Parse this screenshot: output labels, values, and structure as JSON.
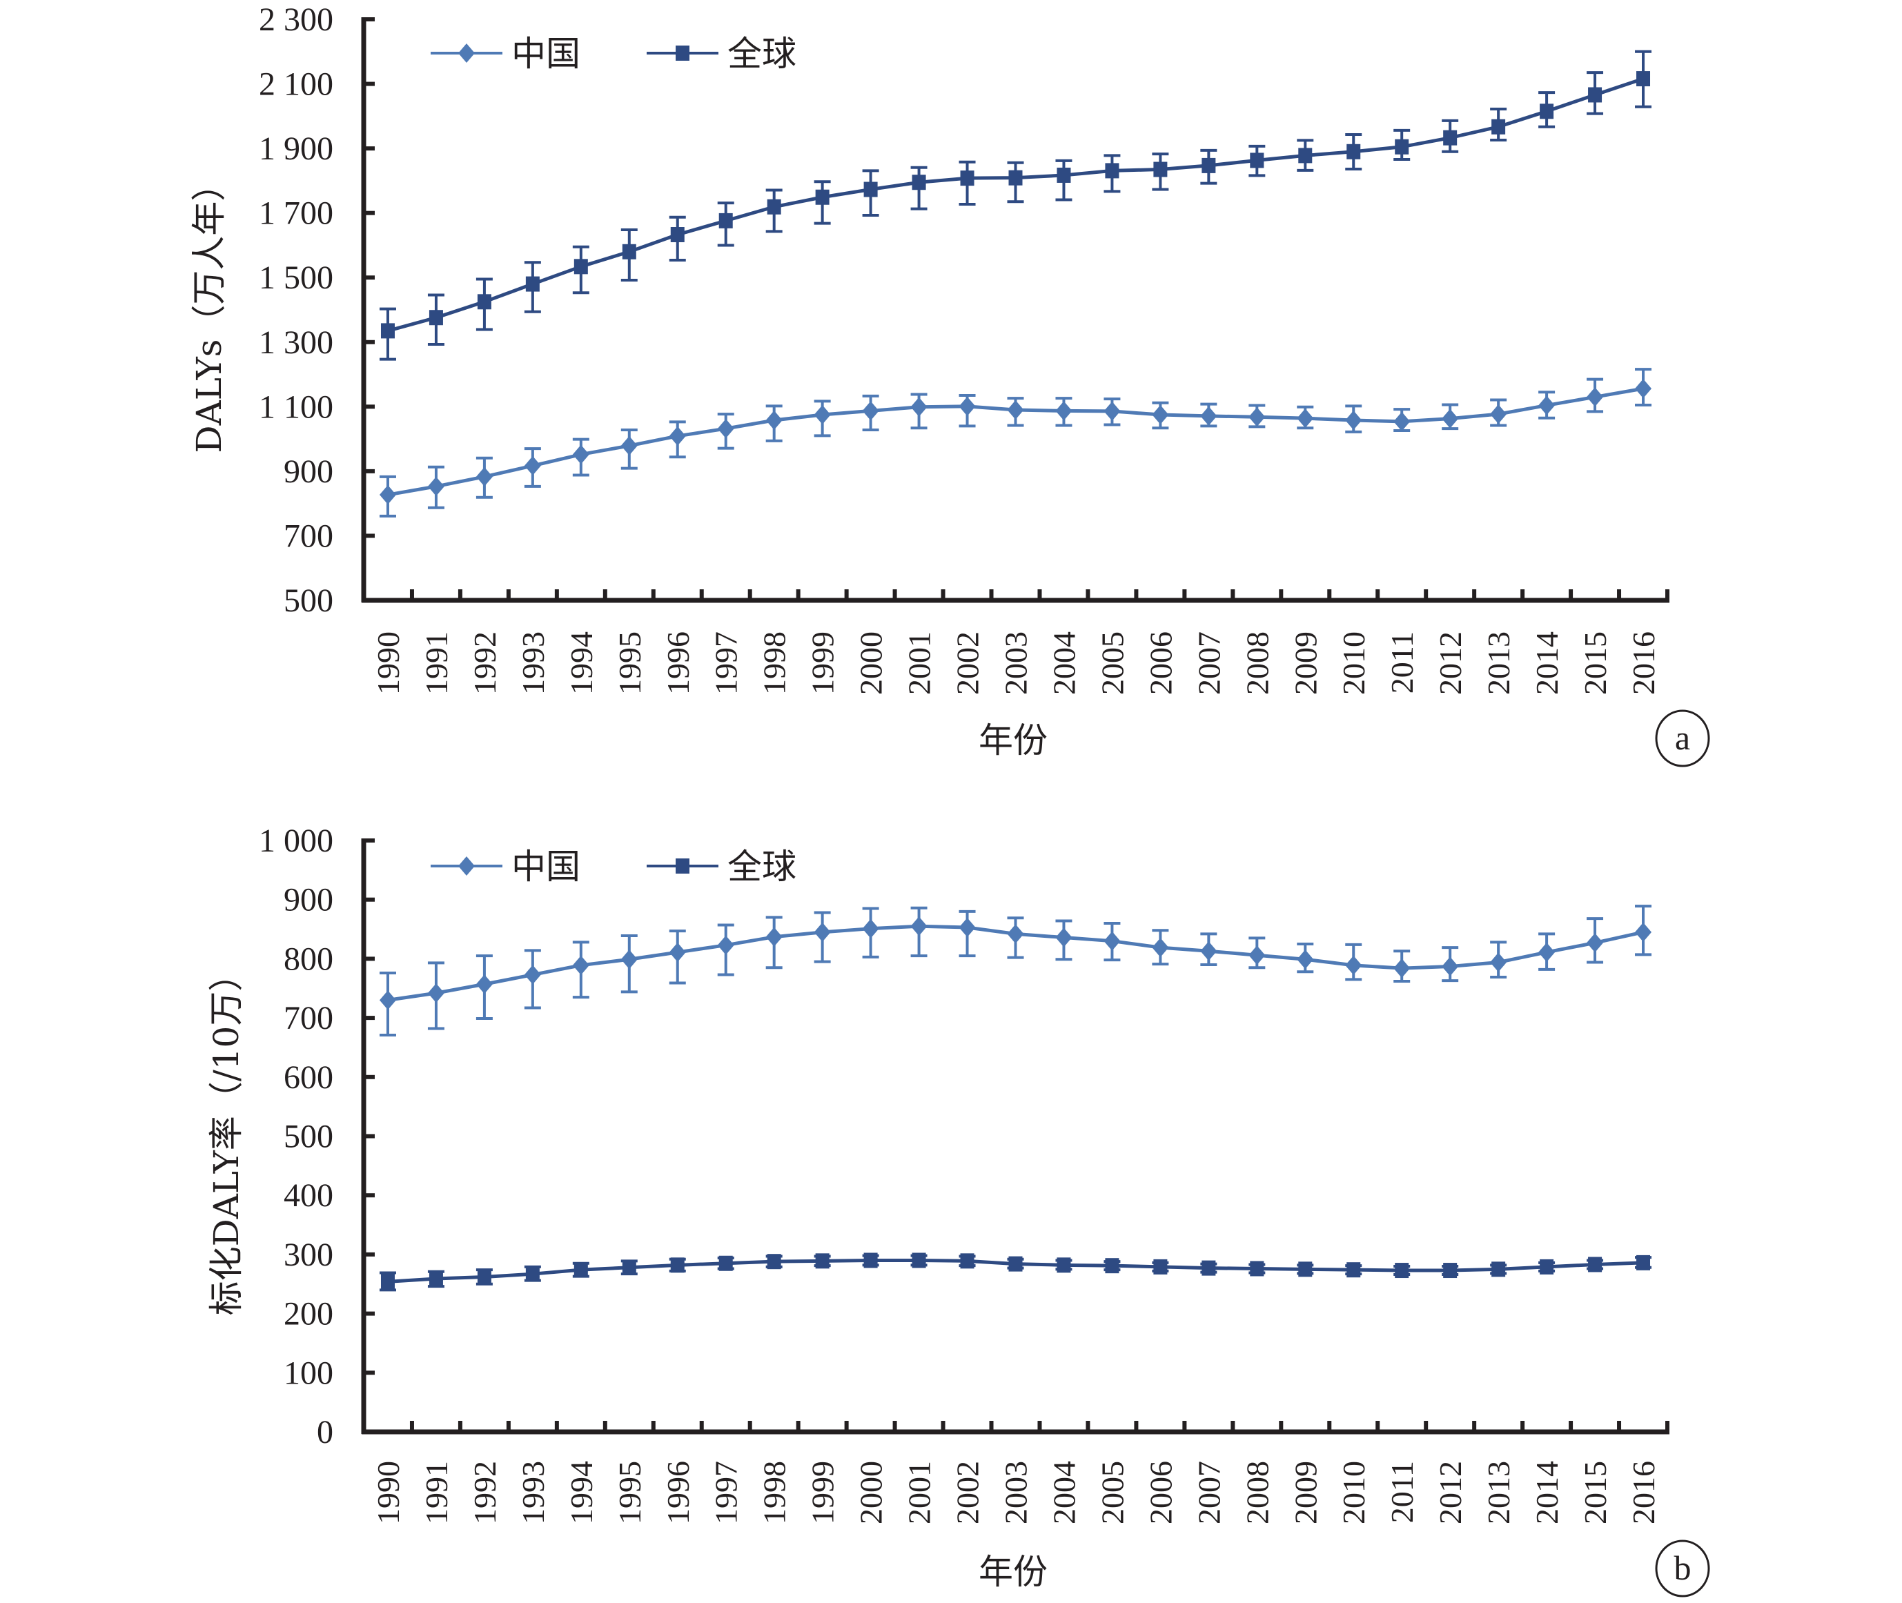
{
  "chart_data": [
    {
      "panel": "a",
      "type": "line",
      "title": "",
      "xlabel": "年份",
      "ylabel": "DALYs（万人年）",
      "ylim": [
        500,
        2300
      ],
      "yticks": [
        500,
        700,
        900,
        1100,
        1300,
        1500,
        1700,
        1900,
        2100,
        2300
      ],
      "ytick_labels": [
        "500",
        "700",
        "900",
        "1 100",
        "1 300",
        "1 500",
        "1 700",
        "1 900",
        "2 100",
        "2 300"
      ],
      "grid": false,
      "legend_position": "top-left",
      "categories": [
        "1990",
        "1991",
        "1992",
        "1993",
        "1994",
        "1995",
        "1996",
        "1997",
        "1998",
        "1999",
        "2000",
        "2001",
        "2002",
        "2003",
        "2004",
        "2005",
        "2006",
        "2007",
        "2008",
        "2009",
        "2010",
        "2011",
        "2012",
        "2013",
        "2014",
        "2015",
        "2016"
      ],
      "series": [
        {
          "name": "中国",
          "marker": "diamond",
          "color": "#4f7ab5",
          "values": [
            827,
            853,
            883,
            917,
            952,
            979,
            1009,
            1032,
            1058,
            1075,
            1087,
            1099,
            1101,
            1090,
            1087,
            1086,
            1075,
            1071,
            1068,
            1064,
            1058,
            1054,
            1063,
            1077,
            1104,
            1130,
            1156
          ],
          "upper": [
            883,
            913,
            941,
            970,
            999,
            1028,
            1053,
            1077,
            1102,
            1117,
            1133,
            1138,
            1135,
            1126,
            1126,
            1124,
            1112,
            1108,
            1104,
            1099,
            1102,
            1092,
            1106,
            1121,
            1145,
            1185,
            1216
          ],
          "lower": [
            761,
            787,
            819,
            853,
            888,
            909,
            944,
            971,
            994,
            1010,
            1028,
            1034,
            1040,
            1042,
            1042,
            1044,
            1034,
            1040,
            1038,
            1034,
            1022,
            1026,
            1032,
            1042,
            1065,
            1085,
            1105
          ]
        },
        {
          "name": "全球",
          "marker": "square",
          "color": "#2e4a82",
          "values": [
            1335,
            1376,
            1425,
            1480,
            1534,
            1580,
            1633,
            1676,
            1719,
            1749,
            1773,
            1795,
            1808,
            1809,
            1817,
            1831,
            1835,
            1847,
            1863,
            1878,
            1890,
            1905,
            1933,
            1967,
            2015,
            2066,
            2116
          ],
          "upper": [
            1403,
            1446,
            1495,
            1547,
            1595,
            1648,
            1687,
            1731,
            1771,
            1797,
            1831,
            1841,
            1858,
            1856,
            1862,
            1878,
            1883,
            1894,
            1907,
            1925,
            1943,
            1956,
            1986,
            2022,
            2073,
            2135,
            2200
          ],
          "lower": [
            1247,
            1293,
            1339,
            1394,
            1453,
            1492,
            1554,
            1600,
            1643,
            1668,
            1693,
            1713,
            1727,
            1735,
            1741,
            1767,
            1773,
            1792,
            1816,
            1832,
            1836,
            1866,
            1890,
            1926,
            1967,
            2008,
            2029
          ]
        }
      ]
    },
    {
      "panel": "b",
      "type": "line",
      "title": "",
      "xlabel": "年份",
      "ylabel": "标化DALY率（/10万）",
      "ylim": [
        0,
        1000
      ],
      "yticks": [
        0,
        100,
        200,
        300,
        400,
        500,
        600,
        700,
        800,
        900,
        1000
      ],
      "ytick_labels": [
        "0",
        "100",
        "200",
        "300",
        "400",
        "500",
        "600",
        "700",
        "800",
        "900",
        "1 000"
      ],
      "grid": false,
      "legend_position": "top-left",
      "categories": [
        "1990",
        "1991",
        "1992",
        "1993",
        "1994",
        "1995",
        "1996",
        "1997",
        "1998",
        "1999",
        "2000",
        "2001",
        "2002",
        "2003",
        "2004",
        "2005",
        "2006",
        "2007",
        "2008",
        "2009",
        "2010",
        "2011",
        "2012",
        "2013",
        "2014",
        "2015",
        "2016"
      ],
      "series": [
        {
          "name": "中国",
          "marker": "diamond",
          "color": "#4f7ab5",
          "values": [
            730,
            742,
            757,
            773,
            789,
            799,
            811,
            823,
            837,
            845,
            851,
            855,
            853,
            842,
            836,
            830,
            819,
            813,
            806,
            799,
            789,
            784,
            787,
            794,
            811,
            827,
            845
          ],
          "upper": [
            776,
            793,
            805,
            814,
            828,
            839,
            847,
            857,
            870,
            878,
            885,
            886,
            880,
            869,
            864,
            860,
            848,
            842,
            835,
            825,
            824,
            813,
            819,
            828,
            842,
            868,
            889
          ],
          "lower": [
            671,
            682,
            699,
            717,
            735,
            744,
            759,
            773,
            785,
            795,
            803,
            805,
            805,
            802,
            799,
            798,
            791,
            790,
            785,
            778,
            765,
            762,
            763,
            769,
            782,
            794,
            807
          ]
        },
        {
          "name": "全球",
          "marker": "square",
          "color": "#2e4a82",
          "values": [
            254,
            259,
            262,
            267,
            274,
            278,
            282,
            285,
            288,
            289,
            290,
            290,
            289,
            284,
            282,
            281,
            279,
            277,
            276,
            275,
            274,
            273,
            273,
            275,
            279,
            283,
            286
          ],
          "upper": [
            269,
            271,
            274,
            279,
            285,
            289,
            292,
            294,
            297,
            297,
            298,
            298,
            297,
            292,
            290,
            288,
            286,
            284,
            283,
            282,
            281,
            280,
            280,
            282,
            286,
            290,
            295
          ],
          "lower": [
            240,
            246,
            250,
            256,
            263,
            267,
            272,
            276,
            279,
            281,
            282,
            282,
            281,
            277,
            275,
            274,
            272,
            270,
            269,
            268,
            267,
            266,
            266,
            268,
            272,
            276,
            278
          ]
        }
      ]
    }
  ],
  "panel_labels": [
    "a",
    "b"
  ]
}
